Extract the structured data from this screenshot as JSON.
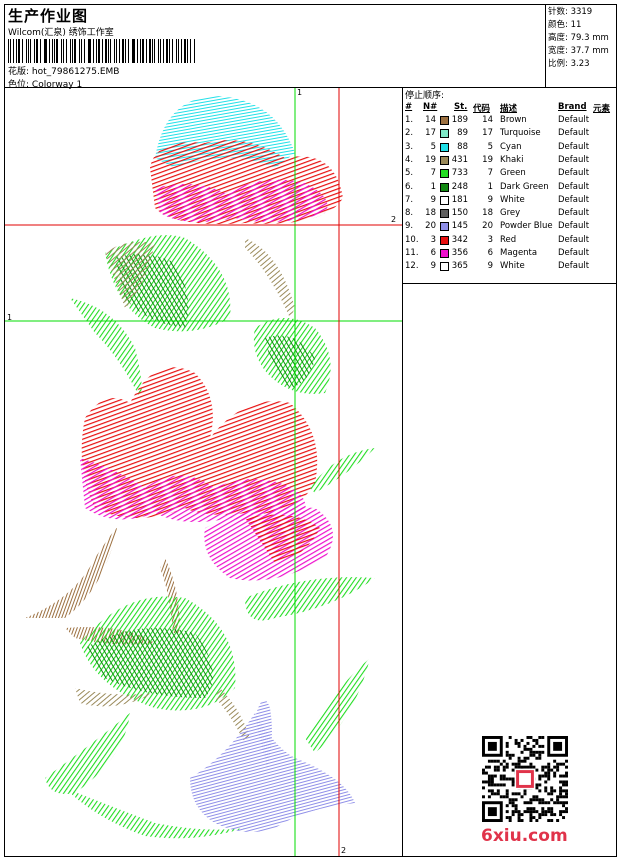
{
  "header": {
    "title": "生产作业图",
    "studio": "Wilcom(汇泉) 绣饰工作室",
    "design_label": "花版:",
    "design_value": "hot_79861275.EMB",
    "colorway_label": "色位:",
    "colorway_value": "Colorway 1"
  },
  "stats": [
    {
      "label": "针数:",
      "value": "3319"
    },
    {
      "label": "颜色:",
      "value": "11"
    },
    {
      "label": "高度:",
      "value": "79.3 mm"
    },
    {
      "label": "宽度:",
      "value": "37.7 mm"
    },
    {
      "label": "比例:",
      "value": "3.23"
    }
  ],
  "stop_sequence": {
    "title": "停止顺序:",
    "headers": {
      "num": "#",
      "n": "N#",
      "st": "St.",
      "code": "代码",
      "desc": "描述",
      "brand": "Brand",
      "element": "元素"
    },
    "rows": [
      {
        "idx": "1.",
        "n": "14",
        "color": "#9c7040",
        "st": "189",
        "code": "14",
        "desc": "Brown",
        "brand": "Default"
      },
      {
        "idx": "2.",
        "n": "17",
        "color": "#7fe9c7",
        "st": "89",
        "code": "17",
        "desc": "Turquoise",
        "brand": "Default"
      },
      {
        "idx": "3.",
        "n": "5",
        "color": "#20e0e8",
        "st": "88",
        "code": "5",
        "desc": "Cyan",
        "brand": "Default"
      },
      {
        "idx": "4.",
        "n": "19",
        "color": "#9a8a5a",
        "st": "431",
        "code": "19",
        "desc": "Khaki",
        "brand": "Default"
      },
      {
        "idx": "5.",
        "n": "7",
        "color": "#22dd22",
        "st": "733",
        "code": "7",
        "desc": "Green",
        "brand": "Default"
      },
      {
        "idx": "6.",
        "n": "1",
        "color": "#118811",
        "st": "248",
        "code": "1",
        "desc": "Dark Green",
        "brand": "Default"
      },
      {
        "idx": "7.",
        "n": "9",
        "color": "#ffffff",
        "st": "181",
        "code": "9",
        "desc": "White",
        "brand": "Default"
      },
      {
        "idx": "8.",
        "n": "18",
        "color": "#606060",
        "st": "150",
        "code": "18",
        "desc": "Grey",
        "brand": "Default"
      },
      {
        "idx": "9.",
        "n": "20",
        "color": "#8f8fe8",
        "st": "145",
        "code": "20",
        "desc": "Powder Blue",
        "brand": "Default"
      },
      {
        "idx": "10.",
        "n": "3",
        "color": "#e81010",
        "st": "342",
        "code": "3",
        "desc": "Red",
        "brand": "Default"
      },
      {
        "idx": "11.",
        "n": "6",
        "color": "#ee10cc",
        "st": "356",
        "code": "6",
        "desc": "Magenta",
        "brand": "Default"
      },
      {
        "idx": "12.",
        "n": "9",
        "color": "#ffffff",
        "st": "365",
        "code": "9",
        "desc": "White",
        "brand": "Default"
      }
    ]
  },
  "guides": {
    "label_1": "1",
    "label_2": "2"
  },
  "watermark": "6xiu.com",
  "palette": {
    "green_guide": "#00dd00",
    "red_guide": "#e00000"
  }
}
